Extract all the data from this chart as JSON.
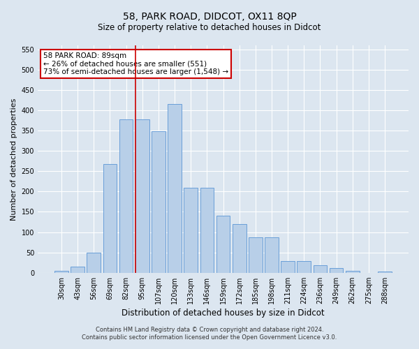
{
  "title": "58, PARK ROAD, DIDCOT, OX11 8QP",
  "subtitle": "Size of property relative to detached houses in Didcot",
  "xlabel": "Distribution of detached houses by size in Didcot",
  "ylabel": "Number of detached properties",
  "categories": [
    "30sqm",
    "43sqm",
    "56sqm",
    "69sqm",
    "82sqm",
    "95sqm",
    "107sqm",
    "120sqm",
    "133sqm",
    "146sqm",
    "159sqm",
    "172sqm",
    "185sqm",
    "198sqm",
    "211sqm",
    "224sqm",
    "236sqm",
    "249sqm",
    "262sqm",
    "275sqm",
    "288sqm"
  ],
  "values": [
    5,
    15,
    50,
    268,
    378,
    378,
    348,
    415,
    210,
    210,
    140,
    120,
    88,
    88,
    28,
    28,
    18,
    12,
    5,
    0,
    3
  ],
  "bar_color": "#b8cfe8",
  "bar_edge_color": "#6a9fd8",
  "vline_x": 4.58,
  "vline_color": "#cc0000",
  "annotation_text": "58 PARK ROAD: 89sqm\n← 26% of detached houses are smaller (551)\n73% of semi-detached houses are larger (1,548) →",
  "annotation_box_color": "#ffffff",
  "annotation_box_edge": "#cc0000",
  "background_color": "#dce6f0",
  "plot_bg_color": "#dce6f0",
  "footer_line1": "Contains HM Land Registry data © Crown copyright and database right 2024.",
  "footer_line2": "Contains public sector information licensed under the Open Government Licence v3.0.",
  "ylim": [
    0,
    560
  ],
  "yticks": [
    0,
    50,
    100,
    150,
    200,
    250,
    300,
    350,
    400,
    450,
    500,
    550
  ]
}
